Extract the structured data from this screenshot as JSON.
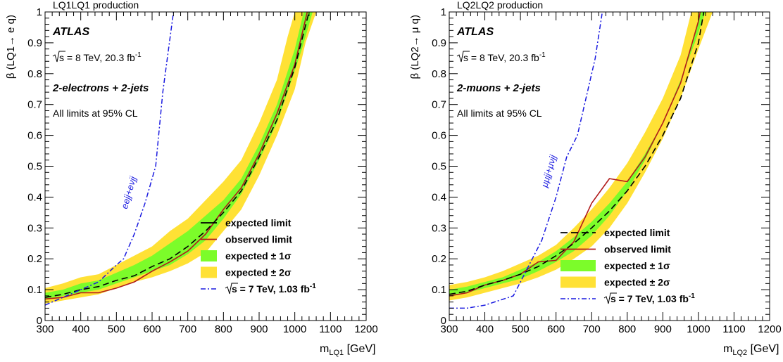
{
  "chart_data": [
    {
      "type": "line",
      "title": "LQ1LQ1 production",
      "xlabel_main": "m",
      "xlabel_sub": "LQ1",
      "xlabel_unit": "[GeV]",
      "ylabel": "β (LQ1→ e q)",
      "xlim": [
        300,
        1200
      ],
      "ylim": [
        0,
        1
      ],
      "xticks": [
        "300",
        "400",
        "500",
        "600",
        "700",
        "800",
        "900",
        "1000",
        "1100",
        "1200"
      ],
      "yticks": [
        "0",
        "0.1",
        "0.2",
        "0.3",
        "0.4",
        "0.5",
        "0.6",
        "0.7",
        "0.8",
        "0.9",
        "1"
      ],
      "annotations": {
        "atlas": "ATLAS",
        "energy_prefix": "s",
        "energy_text": " = 8 TeV, 20.3 fb",
        "energy_sup": "-1",
        "channel": "2-electrons + 2-jets",
        "cl": "All limits at 95% CL",
        "prev_label": "eejj+eνjj"
      },
      "legend": {
        "expected": "expected limit",
        "observed": "observed limit",
        "s1": "expected ± 1σ",
        "s2": "expected ± 2σ",
        "prev_prefix": "s",
        "prev_text": " = 7 TeV, 1.03 fb",
        "prev_sup": "-1"
      },
      "band2_upper": [
        [
          300,
          0.105
        ],
        [
          350,
          0.12
        ],
        [
          400,
          0.14
        ],
        [
          450,
          0.15
        ],
        [
          500,
          0.18
        ],
        [
          550,
          0.21
        ],
        [
          600,
          0.24
        ],
        [
          650,
          0.29
        ],
        [
          700,
          0.33
        ],
        [
          750,
          0.39
        ],
        [
          800,
          0.45
        ],
        [
          850,
          0.52
        ],
        [
          900,
          0.64
        ],
        [
          950,
          0.78
        ],
        [
          980,
          0.92
        ],
        [
          1000,
          1.0
        ]
      ],
      "band2_lower": [
        [
          1060,
          1.0
        ],
        [
          1030,
          0.9
        ],
        [
          1000,
          0.75
        ],
        [
          950,
          0.6
        ],
        [
          900,
          0.47
        ],
        [
          850,
          0.36
        ],
        [
          800,
          0.29
        ],
        [
          750,
          0.22
        ],
        [
          700,
          0.185
        ],
        [
          650,
          0.16
        ],
        [
          600,
          0.14
        ],
        [
          550,
          0.125
        ],
        [
          500,
          0.105
        ],
        [
          450,
          0.085
        ],
        [
          400,
          0.075
        ],
        [
          350,
          0.065
        ],
        [
          300,
          0.055
        ]
      ],
      "band1_upper": [
        [
          300,
          0.09
        ],
        [
          350,
          0.1
        ],
        [
          400,
          0.12
        ],
        [
          450,
          0.13
        ],
        [
          500,
          0.155
        ],
        [
          550,
          0.18
        ],
        [
          600,
          0.21
        ],
        [
          650,
          0.25
        ],
        [
          700,
          0.29
        ],
        [
          750,
          0.34
        ],
        [
          800,
          0.39
        ],
        [
          850,
          0.46
        ],
        [
          900,
          0.57
        ],
        [
          950,
          0.7
        ],
        [
          1000,
          0.88
        ],
        [
          1025,
          1.0
        ]
      ],
      "band1_lower": [
        [
          1050,
          1.0
        ],
        [
          1020,
          0.88
        ],
        [
          980,
          0.74
        ],
        [
          950,
          0.64
        ],
        [
          900,
          0.52
        ],
        [
          850,
          0.41
        ],
        [
          800,
          0.33
        ],
        [
          750,
          0.26
        ],
        [
          700,
          0.215
        ],
        [
          650,
          0.18
        ],
        [
          600,
          0.16
        ],
        [
          550,
          0.14
        ],
        [
          500,
          0.12
        ],
        [
          450,
          0.1
        ],
        [
          400,
          0.09
        ],
        [
          350,
          0.08
        ],
        [
          300,
          0.07
        ]
      ],
      "expected": [
        [
          300,
          0.075
        ],
        [
          350,
          0.085
        ],
        [
          400,
          0.1
        ],
        [
          450,
          0.11
        ],
        [
          500,
          0.13
        ],
        [
          550,
          0.145
        ],
        [
          600,
          0.175
        ],
        [
          650,
          0.2
        ],
        [
          700,
          0.24
        ],
        [
          750,
          0.29
        ],
        [
          800,
          0.35
        ],
        [
          850,
          0.42
        ],
        [
          900,
          0.53
        ],
        [
          950,
          0.65
        ],
        [
          1000,
          0.82
        ],
        [
          1040,
          1.0
        ]
      ],
      "observed": [
        [
          300,
          0.07
        ],
        [
          350,
          0.075
        ],
        [
          400,
          0.09
        ],
        [
          450,
          0.09
        ],
        [
          500,
          0.105
        ],
        [
          550,
          0.125
        ],
        [
          600,
          0.16
        ],
        [
          650,
          0.19
        ],
        [
          700,
          0.225
        ],
        [
          750,
          0.28
        ],
        [
          800,
          0.36
        ],
        [
          850,
          0.43
        ],
        [
          900,
          0.54
        ],
        [
          950,
          0.67
        ],
        [
          1000,
          0.83
        ],
        [
          1035,
          1.0
        ]
      ],
      "previous": [
        [
          300,
          0.05
        ],
        [
          350,
          0.075
        ],
        [
          400,
          0.1
        ],
        [
          450,
          0.125
        ],
        [
          500,
          0.18
        ],
        [
          520,
          0.2
        ],
        [
          550,
          0.28
        ],
        [
          580,
          0.38
        ],
        [
          610,
          0.5
        ],
        [
          630,
          0.74
        ],
        [
          660,
          1.0
        ]
      ],
      "prev_label_pos": [
        530,
        0.36
      ]
    },
    {
      "type": "line",
      "title": "LQ2LQ2 production",
      "xlabel_main": "m",
      "xlabel_sub": "LQ2",
      "xlabel_unit": "[GeV]",
      "ylabel": "β (LQ2→ μ q)",
      "xlim": [
        300,
        1200
      ],
      "ylim": [
        0,
        1
      ],
      "xticks": [
        "300",
        "400",
        "500",
        "600",
        "700",
        "800",
        "900",
        "1000",
        "1100",
        "1200"
      ],
      "yticks": [
        "0",
        "0.1",
        "0.2",
        "0.3",
        "0.4",
        "0.5",
        "0.6",
        "0.7",
        "0.8",
        "0.9",
        "1"
      ],
      "annotations": {
        "atlas": "ATLAS",
        "energy_prefix": "s",
        "energy_text": " = 8 TeV, 20.3 fb",
        "energy_sup": "-1",
        "channel": "2-muons + 2-jets",
        "cl": "All limits at 95% CL",
        "prev_label": "μμjj+μνjj"
      },
      "legend": {
        "expected": "expected limit",
        "observed": "observed limit",
        "s1": "expected ± 1σ",
        "s2": "expected ± 2σ",
        "prev_prefix": "s",
        "prev_text": " = 7 TeV, 1.03 fb",
        "prev_sup": "-1"
      },
      "band2_upper": [
        [
          300,
          0.115
        ],
        [
          350,
          0.125
        ],
        [
          400,
          0.14
        ],
        [
          450,
          0.16
        ],
        [
          500,
          0.185
        ],
        [
          550,
          0.21
        ],
        [
          600,
          0.245
        ],
        [
          650,
          0.3
        ],
        [
          700,
          0.36
        ],
        [
          750,
          0.43
        ],
        [
          800,
          0.51
        ],
        [
          850,
          0.61
        ],
        [
          900,
          0.72
        ],
        [
          950,
          0.86
        ],
        [
          980,
          1.0
        ]
      ],
      "band2_lower": [
        [
          1040,
          1.0
        ],
        [
          1000,
          0.88
        ],
        [
          950,
          0.72
        ],
        [
          900,
          0.59
        ],
        [
          850,
          0.48
        ],
        [
          800,
          0.38
        ],
        [
          750,
          0.3
        ],
        [
          700,
          0.24
        ],
        [
          650,
          0.2
        ],
        [
          600,
          0.165
        ],
        [
          550,
          0.14
        ],
        [
          500,
          0.12
        ],
        [
          450,
          0.105
        ],
        [
          400,
          0.09
        ],
        [
          350,
          0.075
        ],
        [
          300,
          0.065
        ]
      ],
      "band1_upper": [
        [
          300,
          0.1
        ],
        [
          350,
          0.11
        ],
        [
          400,
          0.125
        ],
        [
          450,
          0.14
        ],
        [
          500,
          0.165
        ],
        [
          550,
          0.19
        ],
        [
          600,
          0.225
        ],
        [
          650,
          0.27
        ],
        [
          700,
          0.32
        ],
        [
          750,
          0.38
        ],
        [
          800,
          0.45
        ],
        [
          850,
          0.54
        ],
        [
          900,
          0.64
        ],
        [
          950,
          0.77
        ],
        [
          990,
          0.93
        ],
        [
          1005,
          1.0
        ]
      ],
      "band1_lower": [
        [
          1020,
          1.0
        ],
        [
          990,
          0.9
        ],
        [
          950,
          0.78
        ],
        [
          900,
          0.64
        ],
        [
          850,
          0.52
        ],
        [
          800,
          0.42
        ],
        [
          750,
          0.34
        ],
        [
          700,
          0.275
        ],
        [
          650,
          0.225
        ],
        [
          600,
          0.19
        ],
        [
          550,
          0.16
        ],
        [
          500,
          0.135
        ],
        [
          450,
          0.12
        ],
        [
          400,
          0.105
        ],
        [
          350,
          0.09
        ],
        [
          300,
          0.08
        ]
      ],
      "expected": [
        [
          300,
          0.085
        ],
        [
          350,
          0.095
        ],
        [
          400,
          0.115
        ],
        [
          450,
          0.13
        ],
        [
          500,
          0.15
        ],
        [
          550,
          0.175
        ],
        [
          600,
          0.21
        ],
        [
          650,
          0.25
        ],
        [
          700,
          0.3
        ],
        [
          750,
          0.355
        ],
        [
          800,
          0.42
        ],
        [
          850,
          0.5
        ],
        [
          900,
          0.6
        ],
        [
          950,
          0.72
        ],
        [
          1000,
          0.9
        ],
        [
          1015,
          1.0
        ]
      ],
      "observed": [
        [
          300,
          0.08
        ],
        [
          350,
          0.09
        ],
        [
          400,
          0.115
        ],
        [
          450,
          0.13
        ],
        [
          500,
          0.15
        ],
        [
          550,
          0.19
        ],
        [
          600,
          0.195
        ],
        [
          650,
          0.255
        ],
        [
          700,
          0.38
        ],
        [
          750,
          0.46
        ],
        [
          800,
          0.45
        ],
        [
          850,
          0.53
        ],
        [
          900,
          0.64
        ],
        [
          950,
          0.77
        ],
        [
          1000,
          0.97
        ],
        [
          1005,
          1.0
        ]
      ],
      "previous": [
        [
          300,
          0.04
        ],
        [
          350,
          0.04
        ],
        [
          400,
          0.05
        ],
        [
          480,
          0.08
        ],
        [
          520,
          0.17
        ],
        [
          560,
          0.26
        ],
        [
          600,
          0.4
        ],
        [
          630,
          0.53
        ],
        [
          660,
          0.6
        ],
        [
          690,
          0.75
        ],
        [
          710,
          0.85
        ],
        [
          730,
          1.0
        ]
      ],
      "prev_label_pos": [
        575,
        0.43
      ]
    }
  ]
}
